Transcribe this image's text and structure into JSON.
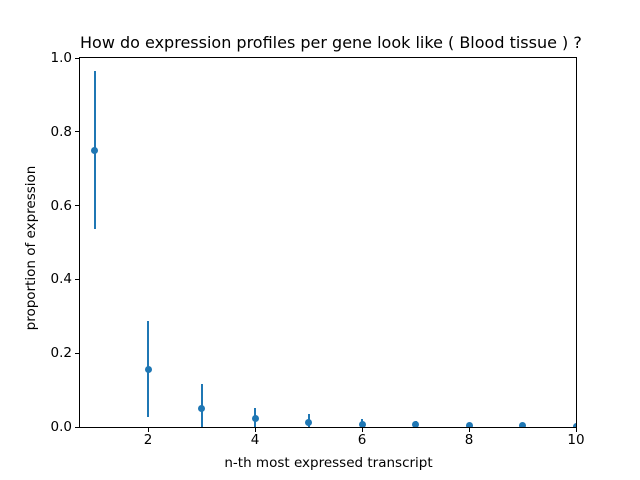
{
  "chart_data": {
    "type": "scatter",
    "title": "How do expression profiles per gene look like ( Blood tissue ) ?",
    "xlabel": "n-th most expressed transcript",
    "ylabel": "proportion of expression",
    "marker_color": "#1f77b4",
    "grid": false,
    "legend_position": "none",
    "xlim": [
      0.727,
      10
    ],
    "ylim": [
      0,
      1
    ],
    "xticks": {
      "values": [
        2,
        4,
        6,
        8,
        10
      ],
      "labels": [
        "2",
        "4",
        "6",
        "8",
        "10"
      ]
    },
    "yticks": {
      "values": [
        0,
        0.2,
        0.4,
        0.6,
        0.8,
        1.0
      ],
      "labels": [
        "0.0",
        "0.2",
        "0.4",
        "0.6",
        "0.8",
        "1.0"
      ]
    },
    "x": [
      1,
      2,
      3,
      4,
      5,
      6,
      7,
      8,
      9,
      10
    ],
    "y": [
      0.75,
      0.157,
      0.051,
      0.022,
      0.013,
      0.007,
      0.006,
      0.004,
      0.003,
      0.002
    ],
    "yerr": [
      0.214,
      0.13,
      0.066,
      0.029,
      0.021,
      0.014,
      0.01,
      0.006,
      0.005,
      0.004
    ]
  }
}
